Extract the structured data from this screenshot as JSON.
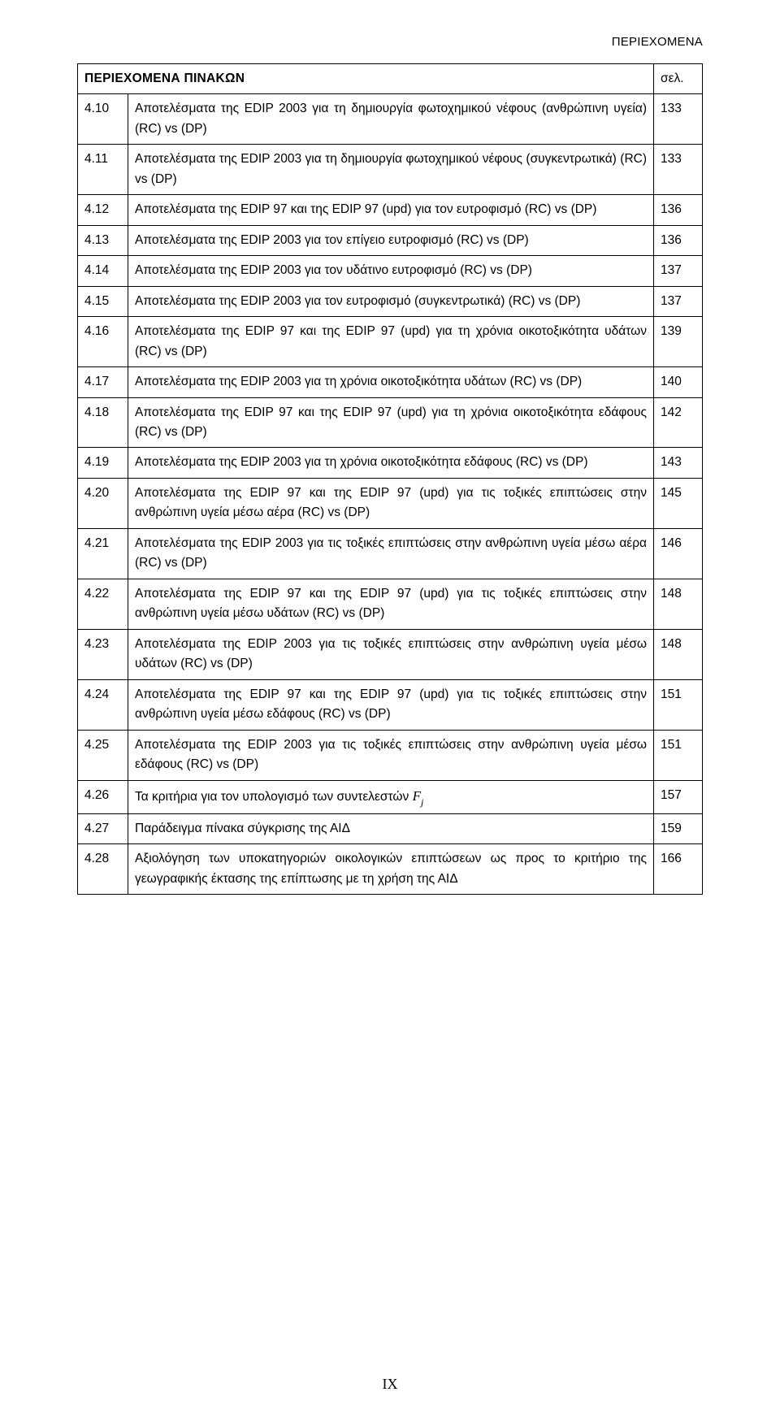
{
  "header_right": "ΠΕΡΙΕΧΟΜΕΝΑ",
  "table_title_left": "ΠΕΡΙΕΧΟΜΕΝΑ ΠΙΝΑΚΩΝ",
  "table_title_right": "σελ.",
  "page_number": "IX",
  "col_widths": {
    "num": 62,
    "page": 60
  },
  "rows": [
    {
      "n": "4.10",
      "d": "Αποτελέσματα της EDIP 2003 για τη δημιουργία φωτοχημικού νέφους (ανθρώπινη υγεία) (RC) vs (DP)",
      "p": "133"
    },
    {
      "n": "4.11",
      "d": "Αποτελέσματα της EDIP 2003 για τη δημιουργία φωτοχημικού νέφους (συγκεντρωτικά) (RC) vs (DP)",
      "p": "133"
    },
    {
      "n": "4.12",
      "d": "Αποτελέσματα της EDIP 97 και της EDIP 97 (upd) για τον ευτροφισμό (RC) vs (DP)",
      "p": "136"
    },
    {
      "n": "4.13",
      "d": "Αποτελέσματα της EDIP 2003 για τον επίγειο ευτροφισμό (RC) vs (DP)",
      "p": "136"
    },
    {
      "n": "4.14",
      "d": "Αποτελέσματα της EDIP 2003 για τον υδάτινο ευτροφισμό (RC) vs (DP)",
      "p": "137"
    },
    {
      "n": "4.15",
      "d": "Αποτελέσματα της EDIP 2003 για τον ευτροφισμό (συγκεντρωτικά) (RC) vs (DP)",
      "p": "137"
    },
    {
      "n": "4.16",
      "d": "Αποτελέσματα της EDIP 97 και της EDIP 97 (upd) για τη χρόνια οικοτοξικότητα υδάτων (RC) vs (DP)",
      "p": "139"
    },
    {
      "n": "4.17",
      "d": "Αποτελέσματα της EDIP 2003 για τη χρόνια οικοτοξικότητα υδάτων (RC) vs (DP)",
      "p": "140"
    },
    {
      "n": "4.18",
      "d": "Αποτελέσματα της EDIP 97 και της EDIP 97 (upd) για τη χρόνια οικοτοξικότητα εδάφους (RC) vs (DP)",
      "p": "142"
    },
    {
      "n": "4.19",
      "d": "Αποτελέσματα της EDIP 2003 για τη χρόνια οικοτοξικότητα εδάφους (RC) vs (DP)",
      "p": "143"
    },
    {
      "n": "4.20",
      "d": "Αποτελέσματα της EDIP 97 και της EDIP 97 (upd) για τις τοξικές επιπτώσεις στην ανθρώπινη υγεία μέσω αέρα (RC) vs (DP)",
      "p": "145"
    },
    {
      "n": "4.21",
      "d": "Αποτελέσματα της EDIP 2003 για τις τοξικές επιπτώσεις στην ανθρώπινη υγεία μέσω αέρα (RC) vs (DP)",
      "p": "146"
    },
    {
      "n": "4.22",
      "d": "Αποτελέσματα της EDIP 97 και της EDIP 97 (upd) για τις τοξικές επιπτώσεις στην ανθρώπινη υγεία μέσω υδάτων (RC) vs (DP)",
      "p": "148"
    },
    {
      "n": "4.23",
      "d": "Αποτελέσματα της EDIP 2003 για τις τοξικές επιπτώσεις στην ανθρώπινη υγεία μέσω υδάτων (RC) vs (DP)",
      "p": "148"
    },
    {
      "n": "4.24",
      "d": "Αποτελέσματα της EDIP 97 και της EDIP 97 (upd) για τις τοξικές επιπτώσεις στην ανθρώπινη υγεία μέσω εδάφους (RC) vs (DP)",
      "p": "151"
    },
    {
      "n": "4.25",
      "d": "Αποτελέσματα της EDIP 2003 για τις τοξικές επιπτώσεις στην ανθρώπινη υγεία μέσω εδάφους (RC) vs (DP)",
      "p": "151"
    },
    {
      "n": "4.26",
      "d": "Τα κριτήρια για τον υπολογισμό των συντελεστών ",
      "p": "157",
      "formula": true
    },
    {
      "n": "4.27",
      "d": "Παράδειγμα πίνακα σύγκρισης της ΑΙΔ",
      "p": "159"
    },
    {
      "n": "4.28",
      "d": "Αξιολόγηση των υποκατηγοριών οικολογικών επιπτώσεων ως προς το κριτήριο της γεωγραφικής έκτασης της επίπτωσης με τη χρήση της ΑΙΔ",
      "p": "166"
    }
  ],
  "formula": {
    "base": "F",
    "sub": "j"
  }
}
